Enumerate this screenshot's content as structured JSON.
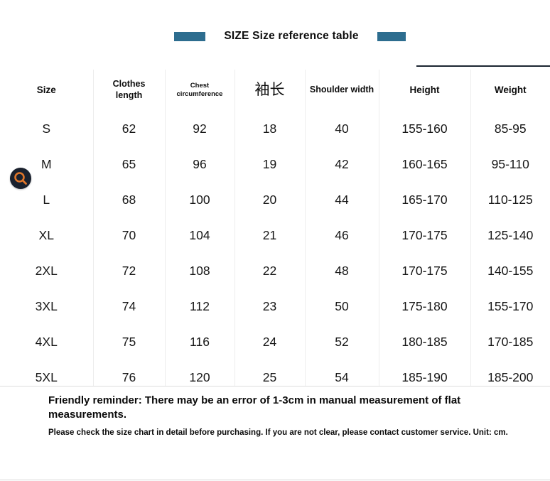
{
  "header": {
    "title": "SIZE Size reference table",
    "accent_color": "#2d6d8f",
    "rule_color": "#1b2531"
  },
  "badge": {
    "icon": "magnifier-icon",
    "background_color": "#1a212e",
    "glyph_color": "#e0762a"
  },
  "table": {
    "headers": [
      "Size",
      "Clothes\nlength",
      "Chest\ncircumference",
      "袖长",
      "Shoulder width",
      "Height",
      "Weight"
    ],
    "rows": [
      [
        "S",
        "62",
        "92",
        "18",
        "40",
        "155-160",
        "85-95"
      ],
      [
        "M",
        "65",
        "96",
        "19",
        "42",
        "160-165",
        "95-110"
      ],
      [
        "L",
        "68",
        "100",
        "20",
        "44",
        "165-170",
        "110-125"
      ],
      [
        "XL",
        "70",
        "104",
        "21",
        "46",
        "170-175",
        "125-140"
      ],
      [
        "2XL",
        "72",
        "108",
        "22",
        "48",
        "170-175",
        "140-155"
      ],
      [
        "3XL",
        "74",
        "112",
        "23",
        "50",
        "175-180",
        "155-170"
      ],
      [
        "4XL",
        "75",
        "116",
        "24",
        "52",
        "180-185",
        "170-185"
      ],
      [
        "5XL",
        "76",
        "120",
        "25",
        "54",
        "185-190",
        "185-200"
      ]
    ]
  },
  "footer": {
    "reminder": "Friendly reminder: There may be an error of 1-3cm in manual measurement of flat measurements.",
    "note": "Please check the size chart in detail before purchasing. If you are not clear, please contact customer service. Unit: cm."
  }
}
